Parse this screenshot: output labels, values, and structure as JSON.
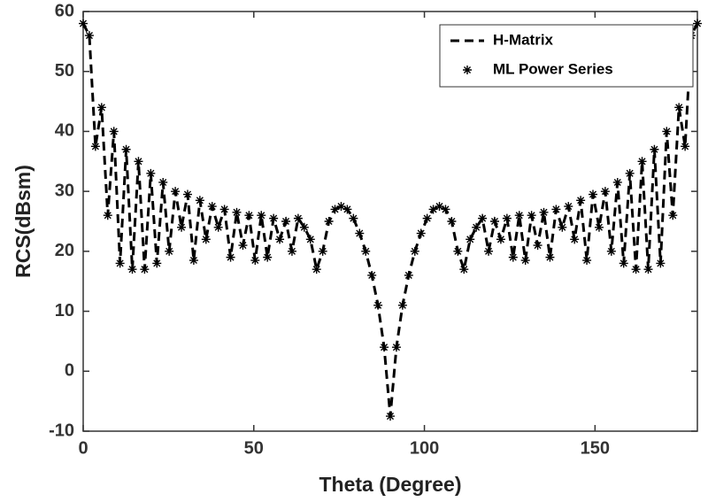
{
  "chart_data": {
    "type": "line",
    "xlabel": "Theta (Degree)",
    "ylabel": "RCS(dBsm)",
    "x": [
      0,
      1.8,
      3.6,
      5.4,
      7.2,
      9,
      10.8,
      12.6,
      14.4,
      16.2,
      18,
      19.8,
      21.6,
      23.4,
      25.2,
      27,
      28.8,
      30.6,
      32.4,
      34.2,
      36,
      37.8,
      39.6,
      41.4,
      43.2,
      45,
      46.8,
      48.6,
      50.4,
      52.2,
      54,
      55.8,
      57.6,
      59.4,
      61.2,
      63,
      64.8,
      66.6,
      68.4,
      70.2,
      72,
      73.8,
      75.6,
      77.4,
      79.2,
      81,
      82.8,
      84.6,
      86.4,
      88.2,
      90,
      91.8,
      93.6,
      95.4,
      97.2,
      99,
      100.8,
      102.6,
      104.4,
      106.2,
      108,
      109.8,
      111.6,
      113.4,
      115.2,
      117,
      118.8,
      120.6,
      122.4,
      124.2,
      126,
      127.8,
      129.6,
      131.4,
      133.2,
      135,
      136.8,
      138.6,
      140.4,
      142.2,
      144,
      145.8,
      147.6,
      149.4,
      151.2,
      153,
      154.8,
      156.6,
      158.4,
      160.2,
      162,
      163.8,
      165.6,
      167.4,
      169.2,
      171,
      172.8,
      174.6,
      176.4,
      178.2,
      180
    ],
    "series": [
      {
        "name": "H-Matrix",
        "type": "line",
        "color": "#000000",
        "values": [
          58,
          56,
          37.5,
          44,
          26,
          40,
          18,
          37,
          17,
          35,
          17,
          33,
          18,
          31.5,
          20,
          30,
          24,
          29.5,
          18.5,
          28.5,
          22,
          27.5,
          24,
          27,
          19,
          26.5,
          21,
          26,
          18.5,
          26,
          19,
          25.5,
          22,
          25,
          20,
          25.5,
          24,
          22,
          17,
          20,
          25,
          27,
          27.5,
          27,
          25.5,
          23,
          20,
          16,
          11,
          4,
          -7.5,
          4,
          11,
          16,
          20,
          23,
          25.5,
          27,
          27.5,
          27,
          25,
          20,
          17,
          22,
          24,
          25.5,
          20,
          25,
          22,
          25.5,
          19,
          26,
          18.5,
          26,
          21,
          26.5,
          19,
          27,
          24,
          27.5,
          22,
          28.5,
          18.5,
          29.5,
          24,
          30,
          20,
          31.5,
          18,
          33,
          17,
          35,
          17,
          37,
          18,
          40,
          26,
          44,
          37.5,
          56,
          58
        ]
      },
      {
        "name": "ML Power Series",
        "type": "scatter",
        "color": "#000000",
        "values": [
          58,
          56,
          37.5,
          44,
          26,
          40,
          18,
          37,
          17,
          35,
          17,
          33,
          18,
          31.5,
          20,
          30,
          24,
          29.5,
          18.5,
          28.5,
          22,
          27.5,
          24,
          27,
          19,
          26.5,
          21,
          26,
          18.5,
          26,
          19,
          25.5,
          22,
          25,
          20,
          25.5,
          24,
          22,
          17,
          20,
          25,
          27,
          27.5,
          27,
          25.5,
          23,
          20,
          16,
          11,
          4,
          -7.5,
          4,
          11,
          16,
          20,
          23,
          25.5,
          27,
          27.5,
          27,
          25,
          20,
          17,
          22,
          24,
          25.5,
          20,
          25,
          22,
          25.5,
          19,
          26,
          18.5,
          26,
          21,
          26.5,
          19,
          27,
          24,
          27.5,
          22,
          28.5,
          18.5,
          29.5,
          24,
          30,
          20,
          31.5,
          18,
          33,
          17,
          35,
          17,
          37,
          18,
          40,
          26,
          44,
          37.5,
          56,
          58
        ]
      }
    ],
    "xlim": [
      0,
      180
    ],
    "xticks": [
      0,
      50,
      100,
      150
    ],
    "ylim": [
      -10,
      60
    ],
    "yticks": [
      -10,
      0,
      10,
      20,
      30,
      40,
      50,
      60
    ],
    "legend": "upper right"
  }
}
